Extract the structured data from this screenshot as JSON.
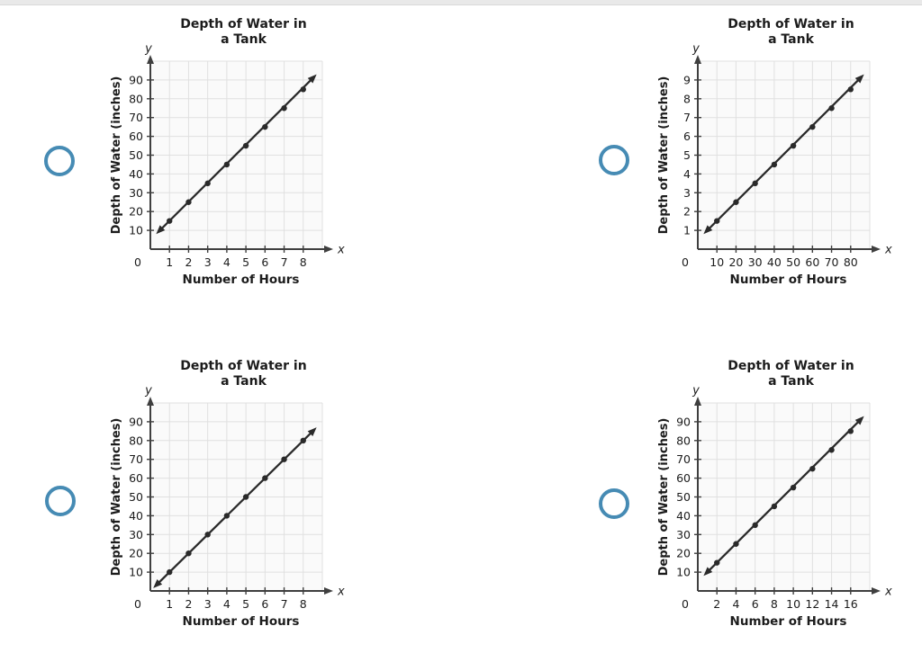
{
  "page": {
    "background": "#ffffff",
    "top_divider_color": "#e9e9e9"
  },
  "radio_buttons": {
    "color": "#468bb4",
    "state": "unselected",
    "count": 4
  },
  "options": [
    {
      "id": "option-1",
      "position": "top-left",
      "chart_index": 0
    },
    {
      "id": "option-2",
      "position": "top-right",
      "chart_index": 1
    },
    {
      "id": "option-3",
      "position": "bottom-left",
      "chart_index": 2
    },
    {
      "id": "option-4",
      "position": "bottom-right",
      "chart_index": 3
    }
  ],
  "colors": {
    "line": "#2a2a2a",
    "dot": "#2a2a2a",
    "grid": "#e0e0e0",
    "axis": "#3f3f3f",
    "plot_bg": "#fafafa",
    "title_text": "#1c1c1c",
    "tick_text": "#3a3a3a"
  },
  "chart_data": [
    {
      "type": "line",
      "title": "Depth of Water in a Tank",
      "title_lines": [
        "Depth of Water in",
        "a Tank"
      ],
      "ylabel": "Depth of Water (inches)",
      "xlabel": "Number of Hours",
      "axis_letters": {
        "x": "x",
        "y": "y"
      },
      "origin_label": "0",
      "x_ticks": [
        1,
        2,
        3,
        4,
        5,
        6,
        7,
        8
      ],
      "y_ticks": [
        10,
        20,
        30,
        40,
        50,
        60,
        70,
        80,
        90
      ],
      "x_tick_step": 1,
      "y_tick_step": 10,
      "x_cells": 9,
      "y_cells": 10,
      "grid": true,
      "legend": false,
      "points": [
        [
          1,
          15
        ],
        [
          2,
          25
        ],
        [
          3,
          35
        ],
        [
          4,
          45
        ],
        [
          5,
          55
        ],
        [
          6,
          65
        ],
        [
          7,
          75
        ],
        [
          8,
          85
        ]
      ],
      "line_start": [
        0.3,
        8
      ],
      "line_end": [
        8.7,
        93
      ]
    },
    {
      "type": "line",
      "title": "Depth of Water in a Tank",
      "title_lines": [
        "Depth of Water in",
        "a Tank"
      ],
      "ylabel": "Depth of Water (inches)",
      "xlabel": "Number of Hours",
      "axis_letters": {
        "x": "x",
        "y": "y"
      },
      "origin_label": "0",
      "x_ticks": [
        10,
        20,
        30,
        40,
        50,
        60,
        70,
        80
      ],
      "y_ticks": [
        1,
        2,
        3,
        4,
        5,
        6,
        7,
        8,
        9
      ],
      "x_tick_step": 10,
      "y_tick_step": 1,
      "x_cells": 9,
      "y_cells": 10,
      "grid": true,
      "legend": false,
      "points": [
        [
          10,
          1.5
        ],
        [
          20,
          2.5
        ],
        [
          30,
          3.5
        ],
        [
          40,
          4.5
        ],
        [
          50,
          5.5
        ],
        [
          60,
          6.5
        ],
        [
          70,
          7.5
        ],
        [
          80,
          8.5
        ]
      ],
      "line_start": [
        3,
        0.8
      ],
      "line_end": [
        87,
        9.3
      ]
    },
    {
      "type": "line",
      "title": "Depth of Water in a Tank",
      "title_lines": [
        "Depth of Water in",
        "a Tank"
      ],
      "ylabel": "Depth of Water (inches)",
      "xlabel": "Number of Hours",
      "axis_letters": {
        "x": "x",
        "y": "y"
      },
      "origin_label": "0",
      "x_ticks": [
        1,
        2,
        3,
        4,
        5,
        6,
        7,
        8
      ],
      "y_ticks": [
        10,
        20,
        30,
        40,
        50,
        60,
        70,
        80,
        90
      ],
      "x_tick_step": 1,
      "y_tick_step": 10,
      "x_cells": 9,
      "y_cells": 10,
      "grid": true,
      "legend": false,
      "points": [
        [
          1,
          10
        ],
        [
          2,
          20
        ],
        [
          3,
          30
        ],
        [
          4,
          40
        ],
        [
          5,
          50
        ],
        [
          6,
          60
        ],
        [
          7,
          70
        ],
        [
          8,
          80
        ]
      ],
      "line_start": [
        0.15,
        1.5
      ],
      "line_end": [
        8.7,
        87
      ]
    },
    {
      "type": "line",
      "title": "Depth of Water in a Tank",
      "title_lines": [
        "Depth of Water in",
        "a Tank"
      ],
      "ylabel": "Depth of Water (inches)",
      "xlabel": "Number of Hours",
      "axis_letters": {
        "x": "x",
        "y": "y"
      },
      "origin_label": "0",
      "x_ticks": [
        2,
        4,
        6,
        8,
        10,
        12,
        14,
        16
      ],
      "y_ticks": [
        10,
        20,
        30,
        40,
        50,
        60,
        70,
        80,
        90
      ],
      "x_tick_step": 2,
      "y_tick_step": 10,
      "x_cells": 9,
      "y_cells": 10,
      "grid": true,
      "legend": false,
      "points": [
        [
          2,
          15
        ],
        [
          4,
          25
        ],
        [
          6,
          35
        ],
        [
          8,
          45
        ],
        [
          10,
          55
        ],
        [
          12,
          65
        ],
        [
          14,
          75
        ],
        [
          16,
          85
        ]
      ],
      "line_start": [
        0.6,
        8
      ],
      "line_end": [
        17.4,
        93
      ]
    }
  ]
}
